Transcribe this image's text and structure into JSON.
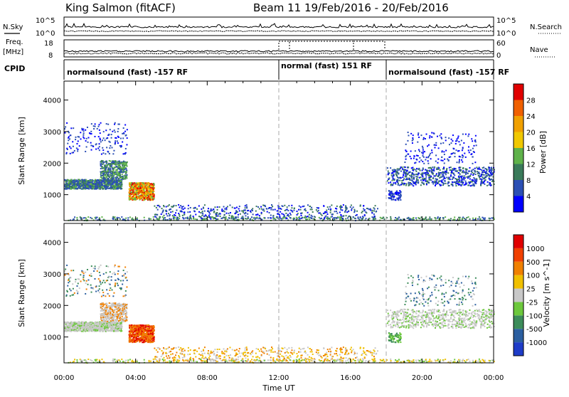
{
  "header": {
    "station_title": "King Salmon (fitACF)",
    "beam_title": "Beam 11   19/Feb/2016 - 20/Feb/2016"
  },
  "top_panels": {
    "nsky_label": "N.Sky",
    "nsky_ticks": [
      "10^5",
      "10^0"
    ],
    "nsearch_label": "N.Search",
    "nsearch_ticks": [
      "10^5",
      "10^0"
    ],
    "freq_label_line1": "Freq.",
    "freq_label_line2": "[MHz]",
    "freq_ticks": [
      "18",
      "8"
    ],
    "nave_label": "Nave",
    "nave_ticks": [
      "60",
      "0"
    ],
    "cpid_label": "CPID",
    "cpid_segments": [
      {
        "label": "normalsound (fast) -157 RF",
        "start_hour": 0
      },
      {
        "label": "normal (fast) 151 RF",
        "start_hour": 12
      },
      {
        "label": "normalsound (fast) -157 RF",
        "start_hour": 18
      }
    ]
  },
  "chart_data": [
    {
      "type": "heatmap",
      "name": "power",
      "ylabel": "Slant Range [km]",
      "xlabel": "Time UT",
      "xlim": [
        0,
        24
      ],
      "ylim": [
        180,
        4600
      ],
      "x_tick_labels": [
        "00:00",
        "04:00",
        "08:00",
        "12:00",
        "16:00",
        "20:00",
        "00:00"
      ],
      "y_ticks": [
        1000,
        2000,
        3000,
        4000
      ],
      "colorbar_label": "Power [dB]",
      "colorbar_ticks": [
        "28",
        "24",
        "20",
        "16",
        "12",
        "8",
        "4"
      ],
      "colorbar_range": [
        0,
        32
      ],
      "colors": [
        "#0000ff",
        "#2b4fb4",
        "#3a7a5a",
        "#5fb24a",
        "#f0c800",
        "#f0a000",
        "#f06000",
        "#e00000"
      ],
      "dashed_lines_hours": [
        12,
        18
      ]
    },
    {
      "type": "heatmap",
      "name": "velocity",
      "ylabel": "Slant Range [km]",
      "xlabel": "Time UT",
      "xlim": [
        0,
        24
      ],
      "ylim": [
        180,
        4600
      ],
      "x_tick_labels": [
        "00:00",
        "04:00",
        "08:00",
        "12:00",
        "16:00",
        "20:00",
        "00:00"
      ],
      "y_ticks": [
        1000,
        2000,
        3000,
        4000
      ],
      "colorbar_label": "Velocity [m s^-1]",
      "colorbar_ticks": [
        "1000",
        "500",
        "100",
        "25",
        "-25",
        "-100",
        "-500",
        "-1000"
      ],
      "colors": [
        "#e00000",
        "#f04000",
        "#f08000",
        "#f0c000",
        "#c8c8c8",
        "#6cc83c",
        "#3c8c5a",
        "#2b5fa0",
        "#1e3cc8"
      ],
      "dashed_lines_hours": [
        12,
        18
      ]
    }
  ]
}
